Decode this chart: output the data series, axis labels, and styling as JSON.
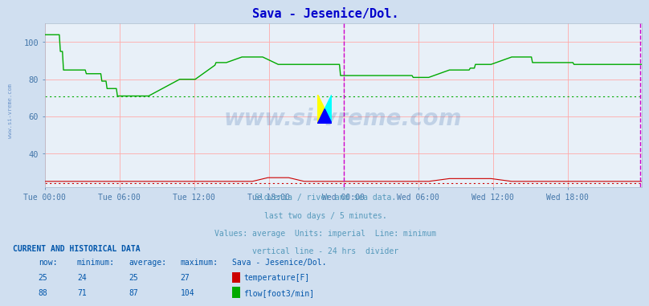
{
  "title": "Sava - Jesenice/Dol.",
  "title_color": "#0000cc",
  "bg_color": "#d0dff0",
  "plot_bg_color": "#e8f0f8",
  "grid_color": "#ffaaaa",
  "tick_color": "#4477aa",
  "watermark_text": "www.si-vreme.com",
  "watermark_color": "#3366aa",
  "watermark_alpha": 0.22,
  "subtitle_lines": [
    "Slovenia / river and sea data.",
    "last two days / 5 minutes.",
    "Values: average  Units: imperial  Line: minimum",
    "vertical line - 24 hrs  divider"
  ],
  "subtitle_color": "#5599bb",
  "footer_title": "CURRENT AND HISTORICAL DATA",
  "footer_color": "#0055aa",
  "x_tick_labels": [
    "Tue 00:00",
    "Tue 06:00",
    "Tue 12:00",
    "Tue 18:00",
    "Wed 00:00",
    "Wed 06:00",
    "Wed 12:00",
    "Wed 18:00"
  ],
  "x_tick_positions": [
    0,
    72,
    144,
    216,
    288,
    360,
    432,
    504
  ],
  "total_points": 576,
  "ylim": [
    22,
    110
  ],
  "yticks": [
    40,
    60,
    80,
    100
  ],
  "temp_color": "#cc0000",
  "flow_color": "#00aa00",
  "temp_min_line": 24,
  "flow_min_line": 71,
  "divider_x": 288,
  "divider_color": "#cc00cc",
  "right_edge_color": "#cc00cc",
  "temp_now": 25,
  "temp_min": 24,
  "temp_avg": 25,
  "temp_max": 27,
  "flow_now": 88,
  "flow_min": 71,
  "flow_avg": 87,
  "flow_max": 104,
  "left_label": "www.si-vreme.com",
  "left_label_color": "#4477bb"
}
